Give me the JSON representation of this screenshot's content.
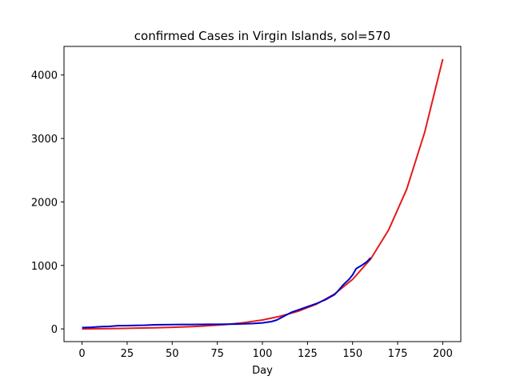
{
  "chart_data": {
    "type": "line",
    "title": "confirmed Cases in Virgin Islands, sol=570",
    "xlabel": "Day",
    "ylabel": "",
    "xlim": [
      -10,
      210
    ],
    "ylim": [
      -200,
      4450
    ],
    "xticks": [
      0,
      25,
      50,
      75,
      100,
      125,
      150,
      175,
      200
    ],
    "yticks": [
      0,
      1000,
      2000,
      3000,
      4000
    ],
    "grid": false,
    "series": [
      {
        "color": "#e31a1c",
        "x": [
          0,
          10,
          20,
          30,
          40,
          50,
          60,
          70,
          80,
          90,
          100,
          110,
          120,
          130,
          140,
          150,
          160,
          170,
          180,
          190,
          200
        ],
        "y": [
          0,
          3,
          7,
          12,
          18,
          25,
          35,
          50,
          70,
          100,
          140,
          200,
          280,
          390,
          550,
          780,
          1100,
          1560,
          2200,
          3100,
          4250
        ]
      },
      {
        "color": "#0000cc",
        "x": [
          0,
          5,
          10,
          15,
          20,
          25,
          30,
          35,
          40,
          45,
          50,
          55,
          60,
          65,
          70,
          75,
          80,
          85,
          90,
          95,
          100,
          105,
          108,
          112,
          116,
          120,
          125,
          130,
          135,
          140,
          142,
          145,
          148,
          150,
          152,
          155,
          158,
          160
        ],
        "y": [
          20,
          25,
          35,
          40,
          50,
          52,
          55,
          58,
          65,
          66,
          68,
          69,
          70,
          71,
          72,
          73,
          74,
          76,
          80,
          85,
          95,
          115,
          140,
          200,
          260,
          300,
          350,
          400,
          460,
          540,
          600,
          700,
          780,
          850,
          950,
          1000,
          1060,
          1120
        ]
      }
    ]
  }
}
